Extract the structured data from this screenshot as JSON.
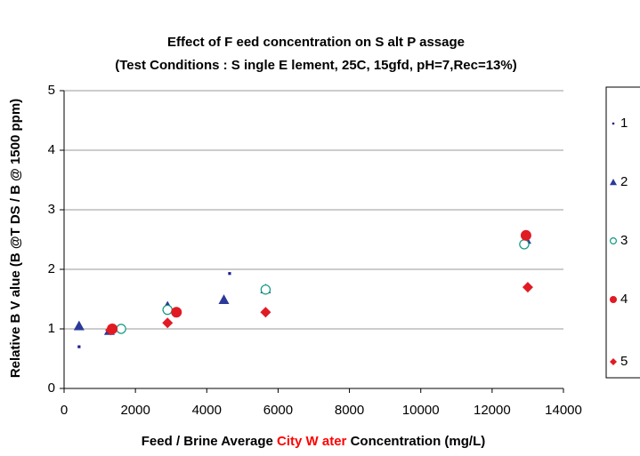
{
  "chart_data": {
    "type": "scatter",
    "title": "Effect  of F eed  concentration  on  S  alt P assage",
    "subtitle": "(Test  Conditions  : S ingle E lement,  25C,  15gfd,  pH=7,Rec=13%)",
    "x_label": [
      "Feed /  Brine  Average ",
      "City W ater",
      "  Concentration  (mg/L)"
    ],
    "x_label_colors": [
      "#000000",
      "#ff0000",
      "#000000"
    ],
    "y_label": "Relative  B V alue  (B  @T DS /  B  @  1500  ppm)",
    "xlim": [
      0,
      14000
    ],
    "xticks": [
      0,
      2000,
      4000,
      6000,
      8000,
      10000,
      12000,
      14000
    ],
    "ylim": [
      0,
      5
    ],
    "yticks": [
      0,
      1,
      2,
      3,
      4,
      5
    ],
    "grid": true,
    "legend": "right",
    "series": [
      {
        "name": "1",
        "color": "#1f1f8f",
        "marker": "square",
        "x": [
          420,
          4640
        ],
        "values": [
          0.7,
          1.93
        ]
      },
      {
        "name": "2",
        "color": "#2b3a99",
        "marker": "triangle",
        "x": [
          420,
          1270,
          2900,
          4480,
          5650,
          12950
        ],
        "values": [
          1.05,
          0.97,
          1.38,
          1.49,
          1.67,
          2.5
        ]
      },
      {
        "name": "3",
        "color": "#0f9a7f",
        "marker": "open-circle",
        "x": [
          1600,
          2900,
          5650,
          12900
        ],
        "values": [
          1.0,
          1.32,
          1.66,
          2.42
        ]
      },
      {
        "name": "4",
        "color": "#e01b24",
        "marker": "circle",
        "x": [
          1350,
          3150,
          12950
        ],
        "values": [
          1.0,
          1.28,
          2.57
        ]
      },
      {
        "name": "5",
        "color": "#e01b24",
        "marker": "diamond",
        "x": [
          1300,
          2900,
          5650,
          13000
        ],
        "values": [
          0.98,
          1.1,
          1.28,
          1.7
        ]
      }
    ]
  }
}
